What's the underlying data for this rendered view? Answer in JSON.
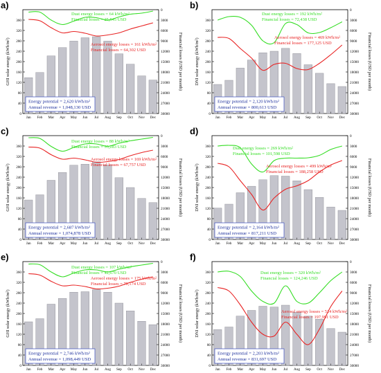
{
  "months": [
    "Jan",
    "Feb",
    "Mar",
    "Apr",
    "May",
    "Jun",
    "Jul",
    "Aug",
    "Sep",
    "Oct",
    "Nov",
    "Dec"
  ],
  "colors": {
    "bar": "#c4c4cc",
    "bar_edge": "#888890",
    "dust": "#33dd22",
    "aerosol": "#e82222",
    "box_text": "#1c2f9c",
    "box_border": "#3b4fc0"
  },
  "chart_data": [
    {
      "type": "bar",
      "panel": "a)",
      "ylabel": "GHI solar energy (kWh/m²)",
      "y2label": "Financial losses (USD per month)",
      "ylim": [
        0,
        400
      ],
      "yticks": [
        0,
        40,
        80,
        120,
        160,
        200,
        240,
        280,
        320,
        360
      ],
      "y2ticks": [
        0,
        3000,
        6000,
        9000,
        12000,
        15000,
        18000,
        21000,
        24000,
        27000,
        30000
      ],
      "values": [
        138,
        158,
        222,
        254,
        279,
        292,
        296,
        279,
        230,
        190,
        145,
        129
      ],
      "dust_loss_usd": [
        700,
        700,
        3000,
        4300,
        3300,
        2200,
        2300,
        3000,
        2100,
        1300,
        1000,
        400
      ],
      "aerosol_loss_usd": [
        2800,
        3200,
        5200,
        6700,
        6300,
        6800,
        7600,
        7300,
        6700,
        5600,
        4700,
        3800
      ],
      "dust_text": [
        "Dust energy losses = ",
        "64 kWh/m²",
        "Financial losses = ",
        "25,545 USD"
      ],
      "aerosol_text": [
        "Aerosol energy losses = ",
        "161 kWh/m²",
        "Financial losses = ",
        "64,302 USD"
      ],
      "box_text": [
        "Energy potential = ",
        "2,620 kWh/m²",
        "Annual revenue = ",
        "1,048,130 USD"
      ]
    },
    {
      "type": "bar",
      "panel": "b)",
      "ylabel": "DNI solar energy (kWh/m²)",
      "y2label": "Financial losses (USD per month)",
      "ylim": [
        0,
        400
      ],
      "yticks": [
        0,
        40,
        80,
        120,
        160,
        200,
        240,
        280,
        320,
        360
      ],
      "y2ticks": [
        0,
        3000,
        6000,
        9000,
        12000,
        15000,
        18000,
        21000,
        24000,
        27000,
        30000
      ],
      "values": [
        112,
        128,
        175,
        206,
        234,
        240,
        251,
        231,
        188,
        155,
        115,
        104
      ],
      "dust_loss_usd": [
        3000,
        2000,
        2200,
        4500,
        9000,
        9500,
        4000,
        4300,
        6700,
        6600,
        5200,
        3500
      ],
      "aerosol_loss_usd": [
        8000,
        8300,
        11200,
        14000,
        17500,
        15800,
        15500,
        17000,
        17300,
        15500,
        13000,
        10200
      ],
      "dust_text": [
        "Dust energy losses = ",
        "192 kWh/m²",
        "Financial losses = ",
        "72,438 USD"
      ],
      "aerosol_text": [
        "Aerosol energy losses = ",
        "469 kWh/m²",
        "Financial losses = ",
        "177,125 USD"
      ],
      "box_text": [
        "Energy potential = ",
        "2,120 kWh/m²",
        "Annual revenue = ",
        "800,613 USD"
      ]
    },
    {
      "type": "bar",
      "panel": "c)",
      "ylabel": "GHI solar energy (kWh/m²)",
      "y2label": "Financial losses (USD per month)",
      "ylim": [
        0,
        400
      ],
      "yticks": [
        0,
        40,
        80,
        120,
        160,
        200,
        240,
        280,
        320,
        360
      ],
      "y2ticks": [
        0,
        3000,
        6000,
        9000,
        12000,
        15000,
        18000,
        21000,
        24000,
        27000,
        30000
      ],
      "values": [
        152,
        172,
        228,
        258,
        286,
        290,
        299,
        287,
        238,
        200,
        158,
        142
      ],
      "dust_loss_usd": [
        600,
        800,
        3100,
        4500,
        3400,
        2400,
        2400,
        3100,
        2200,
        1500,
        1000,
        500
      ],
      "aerosol_loss_usd": [
        3300,
        3600,
        5500,
        6800,
        6500,
        7000,
        7700,
        7500,
        6900,
        5800,
        4900,
        4200
      ],
      "dust_text": [
        "Dust energy losses = ",
        "88 kWh/m²",
        "Financial losses = ",
        "35,283 USD"
      ],
      "aerosol_text": [
        "Aerosol energy losses = ",
        "169 kWh/m²",
        "Financial losses = ",
        "67,757 USD"
      ],
      "box_text": [
        "Energy potential = ",
        "2,687 kWh/m²",
        "Annual revenue = ",
        "1,074,878 USD"
      ]
    },
    {
      "type": "bar",
      "panel": "d)",
      "ylabel": "DNI solar energy (kWh/m²)",
      "y2label": "Financial losses (USD per month)",
      "ylim": [
        0,
        400
      ],
      "yticks": [
        0,
        40,
        80,
        120,
        160,
        200,
        240,
        280,
        320,
        360
      ],
      "y2ticks": [
        0,
        3000,
        6000,
        9000,
        12000,
        15000,
        18000,
        21000,
        24000,
        27000,
        30000
      ],
      "values": [
        121,
        136,
        180,
        205,
        230,
        246,
        244,
        226,
        192,
        162,
        125,
        112
      ],
      "dust_loss_usd": [
        3000,
        2800,
        3500,
        8200,
        10500,
        7200,
        6500,
        6500,
        6400,
        5700,
        4000,
        3000
      ],
      "aerosol_loss_usd": [
        8000,
        9000,
        13000,
        17000,
        21500,
        18000,
        15500,
        14500,
        13000,
        10500,
        8500,
        7200
      ],
      "dust_text": [
        "Dust energy losses = ",
        "269 kWh/m²",
        "Financial losses = ",
        "101,598 USD"
      ],
      "aerosol_text": [
        "Aerosol energy losses = ",
        "499 kWh/m²",
        "Financial losses = ",
        "188,258 USD"
      ],
      "box_text": [
        "Energy potential = ",
        "2,164 kWh/m²",
        "Annual revenue = ",
        "817,211 USD"
      ]
    },
    {
      "type": "bar",
      "panel": "e)",
      "ylabel": "GHI solar energy (kWh/m²)",
      "y2label": "Financial losses (USD per month)",
      "ylim": [
        0,
        400
      ],
      "yticks": [
        0,
        40,
        80,
        120,
        160,
        200,
        240,
        280,
        320,
        360
      ],
      "y2ticks": [
        0,
        3000,
        6000,
        9000,
        12000,
        15000,
        18000,
        21000,
        24000,
        27000,
        30000
      ],
      "values": [
        168,
        180,
        236,
        258,
        282,
        284,
        292,
        282,
        240,
        210,
        170,
        157
      ],
      "dust_loss_usd": [
        700,
        900,
        3000,
        4400,
        3300,
        2400,
        2400,
        3000,
        2200,
        1500,
        1000,
        500
      ],
      "aerosol_loss_usd": [
        3500,
        3900,
        5700,
        7000,
        6800,
        7200,
        7900,
        7700,
        7100,
        6000,
        5100,
        4400
      ],
      "dust_text": [
        "Dust energy losses = ",
        "107 kWh/m²",
        "Financial losses = ",
        "42,670 USD"
      ],
      "aerosol_text": [
        "Aerosol energy losses = ",
        "175 kWh/m²",
        "Financial losses = ",
        "70,174 USD"
      ],
      "box_text": [
        "Energy potential = ",
        "2,746 kWh/m²",
        "Annual revenue = ",
        "1,098,449 USD"
      ]
    },
    {
      "type": "bar",
      "panel": "f)",
      "ylabel": "DNI solar energy (kWh/m²)",
      "y2label": "Financial losses (USD per month)",
      "ylim": [
        0,
        400
      ],
      "yticks": [
        0,
        40,
        80,
        120,
        160,
        200,
        240,
        280,
        320,
        360
      ],
      "y2ticks": [
        0,
        3000,
        6000,
        9000,
        12000,
        15000,
        18000,
        21000,
        24000,
        27000,
        30000
      ],
      "values": [
        138,
        148,
        190,
        212,
        228,
        225,
        232,
        205,
        190,
        178,
        142,
        128
      ],
      "dust_loss_usd": [
        3000,
        2800,
        4300,
        8500,
        11500,
        12000,
        7000,
        11500,
        12000,
        9000,
        5500,
        3000
      ],
      "aerosol_loss_usd": [
        7500,
        8500,
        12500,
        17500,
        21000,
        21500,
        17500,
        21000,
        24000,
        19500,
        13000,
        8500
      ],
      "dust_text": [
        "Dust energy losses = ",
        "320 kWh/m²",
        "Financial losses = ",
        "124,246 USD"
      ],
      "aerosol_text": [
        "Aerosol energy losses = ",
        "524 kWh/m²",
        "Financial losses = ",
        "197,991 USD"
      ],
      "box_text": [
        "Energy potential = ",
        "2,203 kWh/m²",
        "Annual revenue = ",
        "831,697 USD"
      ]
    }
  ]
}
